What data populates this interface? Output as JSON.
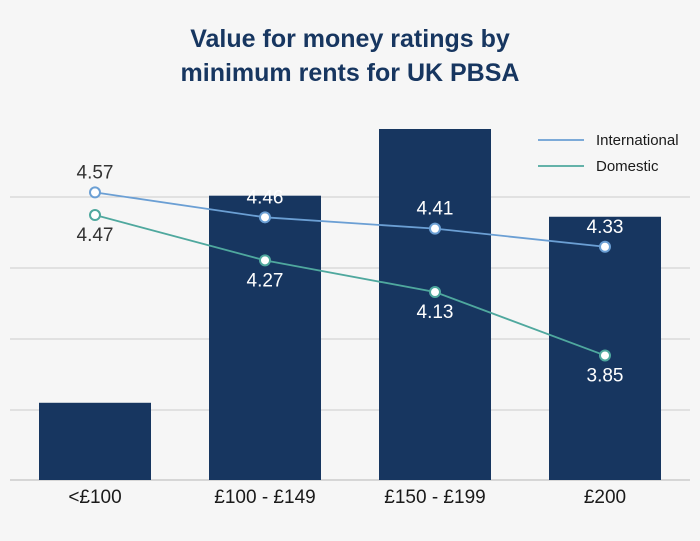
{
  "chart_data": {
    "type": "bar",
    "title_lines": [
      "Value for money ratings by",
      "minimum rents for UK PBSA"
    ],
    "categories": [
      "<£100",
      "£100 - £149",
      "£150 - £199",
      "£200"
    ],
    "bars": {
      "values": [
        22,
        81,
        100,
        75
      ],
      "color": "#173660"
    },
    "bar_ylim": [
      0,
      100
    ],
    "series": [
      {
        "name": "International",
        "values": [
          4.57,
          4.46,
          4.41,
          4.33
        ],
        "labels": [
          "4.57",
          "4.46",
          "4.41",
          "4.33"
        ],
        "color": "#6b9fd4"
      },
      {
        "name": "Domestic",
        "values": [
          4.47,
          4.27,
          4.13,
          3.85
        ],
        "labels": [
          "4.47",
          "4.27",
          "4.13",
          "3.85"
        ],
        "color": "#4fa89e"
      }
    ],
    "line_ylim": [
      3.3,
      4.85
    ],
    "legend_position": "top-right",
    "grid": true,
    "colors": {
      "label_dark": "#333333",
      "label_light": "#ffffff",
      "grid": "#cccccc"
    }
  }
}
